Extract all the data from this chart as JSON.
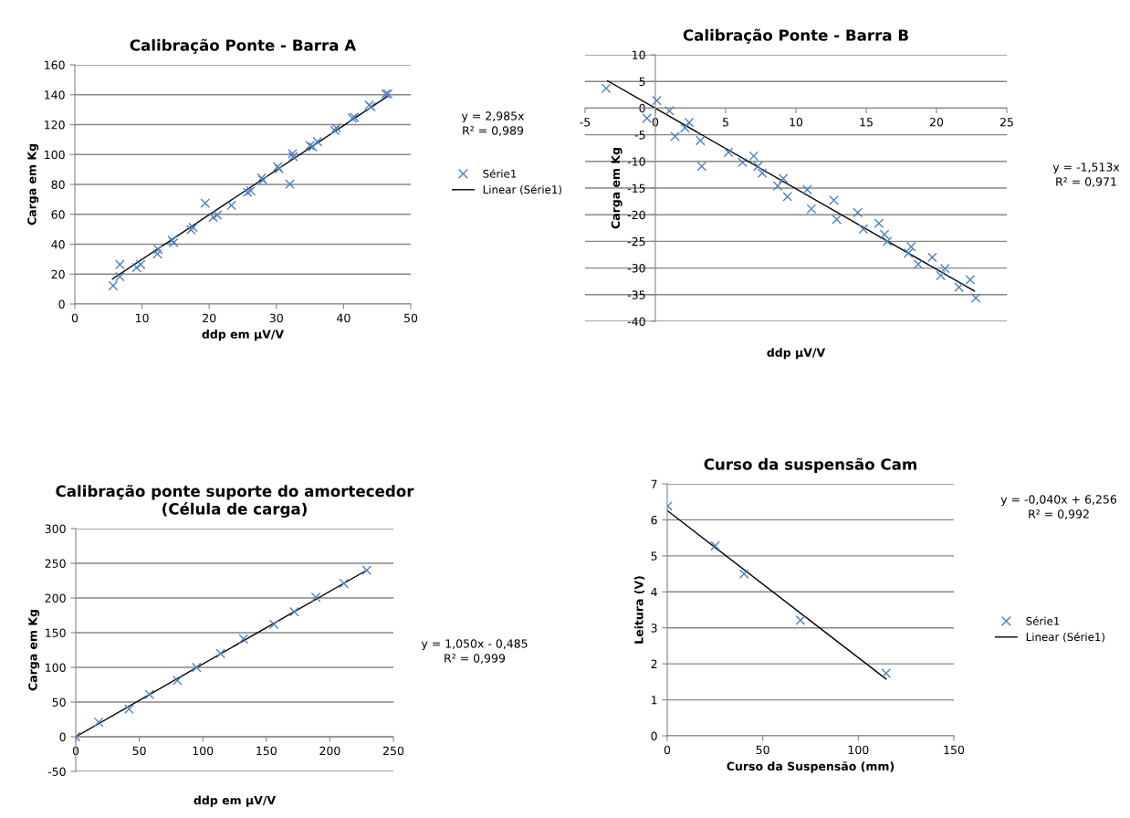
{
  "chart_data": [
    {
      "type": "scatter",
      "title": "Calibração Ponte - Barra A",
      "xlabel": "ddp em μV/V",
      "ylabel": "Carga em Kg",
      "xlim": [
        0,
        50
      ],
      "xticks": [
        0,
        10,
        20,
        30,
        40,
        50
      ],
      "ylim": [
        0,
        160
      ],
      "yticks": [
        0,
        20,
        40,
        60,
        80,
        100,
        120,
        140,
        160
      ],
      "grid": "y",
      "legend": "right",
      "marker": "cross",
      "annotations": [
        "y = 2,985x",
        "R² = 0,989"
      ],
      "series": [
        {
          "name": "Série1",
          "color": "#4f81bd",
          "x": [
            5.7,
            6.7,
            6.7,
            9.2,
            9.8,
            12.3,
            12.4,
            14.5,
            14.7,
            17.3,
            17.6,
            19.4,
            20.6,
            21.2,
            23.3,
            25.7,
            26.2,
            27.8,
            28,
            30.2,
            30.4,
            32,
            32.4,
            32.5,
            35,
            35.4,
            36.1,
            38.7,
            38.9,
            41.3,
            41.6,
            43.8,
            44.1,
            46.3,
            46.6
          ],
          "values": [
            12.2,
            26.4,
            18.3,
            24.4,
            26.4,
            33.5,
            36.5,
            42.6,
            41,
            49.7,
            51.2,
            67.4,
            57.9,
            59.5,
            66,
            74.7,
            75.7,
            84.3,
            82.8,
            91.8,
            90.4,
            80.2,
            100.5,
            98.5,
            106,
            105.2,
            108.6,
            116.1,
            117.8,
            124.3,
            124.9,
            133,
            132,
            140.5,
            140.5
          ]
        },
        {
          "name": "Linear (Série1)",
          "type": "line",
          "color": "#000000",
          "marker": "none",
          "x": [
            5.6,
            46.6
          ],
          "values": [
            16.7,
            139.1
          ]
        }
      ]
    },
    {
      "type": "scatter",
      "title": "Calibração Ponte - Barra B",
      "xlabel": "ddp μV/V",
      "ylabel": "Carga em Kg",
      "xlim": [
        -5,
        25
      ],
      "xticks": [
        -5,
        0,
        5,
        10,
        15,
        20,
        25
      ],
      "ylim": [
        -40,
        10
      ],
      "yticks": [
        -40,
        -35,
        -30,
        -25,
        -20,
        -15,
        -10,
        -5,
        0,
        5,
        10
      ],
      "grid": "y",
      "marker": "cross",
      "annotations": [
        "y = -1,513x",
        "R² = 0,971"
      ],
      "series": [
        {
          "color": "#4f81bd",
          "x": [
            -3.5,
            -0.6,
            0.1,
            1.0,
            1.4,
            2.1,
            2.4,
            3.2,
            3.3,
            5.2,
            6.2,
            7.0,
            7.3,
            7.6,
            8.7,
            9.1,
            9.4,
            10.8,
            11.1,
            12.7,
            12.9,
            14.4,
            14.8,
            15.9,
            16.3,
            16.5,
            18.2,
            18.0,
            18.7,
            19.7,
            20.6,
            20.3,
            21.6,
            22.4,
            22.8
          ],
          "values": [
            3.7,
            -1.9,
            1.4,
            -0.5,
            -5.3,
            -3.7,
            -2.7,
            -6.1,
            -10.9,
            -8.3,
            -10.2,
            -9.0,
            -10.9,
            -12.2,
            -14.6,
            -13.2,
            -16.6,
            -15.3,
            -18.9,
            -17.3,
            -20.9,
            -19.6,
            -22.7,
            -21.6,
            -23.7,
            -25.0,
            -26,
            -27.2,
            -29.3,
            -28,
            -30.1,
            -31.4,
            -33.6,
            -32.2,
            -35.6
          ]
        },
        {
          "type": "line",
          "color": "#000000",
          "marker": "none",
          "x": [
            -3.4,
            22.7
          ],
          "values": [
            5.1,
            -34.3
          ]
        }
      ]
    },
    {
      "type": "scatter",
      "title": "Calibração ponte suporte do amortecedor\n(Célula de carga)",
      "xlabel": "ddp em μV/V",
      "ylabel": "Carga em Kg",
      "xlim": [
        0,
        250
      ],
      "xticks": [
        0,
        50,
        100,
        150,
        200,
        250
      ],
      "ylim": [
        -50,
        300
      ],
      "yticks": [
        -50,
        0,
        50,
        100,
        150,
        200,
        250,
        300
      ],
      "grid": "y",
      "marker": "cross",
      "annotations": [
        "y = 1,050x - 0,485",
        "R² = 0,999"
      ],
      "series": [
        {
          "color": "#4f81bd",
          "x": [
            0,
            18,
            42,
            58,
            80,
            95,
            114,
            132,
            156,
            172,
            189,
            211,
            229
          ],
          "values": [
            0,
            21,
            40,
            61,
            81,
            100,
            120,
            141,
            162,
            180,
            201,
            221,
            240
          ]
        },
        {
          "type": "line",
          "color": "#000000",
          "marker": "none",
          "x": [
            0,
            229
          ],
          "values": [
            0,
            240
          ]
        }
      ]
    },
    {
      "type": "scatter",
      "title": "Curso da suspensão Cam",
      "xlabel": "Curso da Suspensão (mm)",
      "ylabel": "Leitura (V)",
      "xlim": [
        0,
        150
      ],
      "xticks": [
        0,
        50,
        100,
        150
      ],
      "ylim": [
        0,
        7
      ],
      "yticks": [
        0,
        1,
        2,
        3,
        4,
        5,
        6,
        7
      ],
      "grid": "y",
      "legend": "right",
      "marker": "cross",
      "annotations": [
        "y = -0,040x + 6,256",
        "R² = 0,992"
      ],
      "series": [
        {
          "name": "Série1",
          "color": "#4f81bd",
          "x": [
            0.2,
            25.1,
            40.2,
            69.7,
            114.5
          ],
          "values": [
            6.38,
            5.28,
            4.5,
            3.21,
            1.74
          ]
        },
        {
          "name": "Linear (Série1)",
          "type": "line",
          "color": "#000000",
          "marker": "none",
          "x": [
            0,
            114.5
          ],
          "values": [
            6.26,
            1.58
          ]
        }
      ]
    }
  ]
}
